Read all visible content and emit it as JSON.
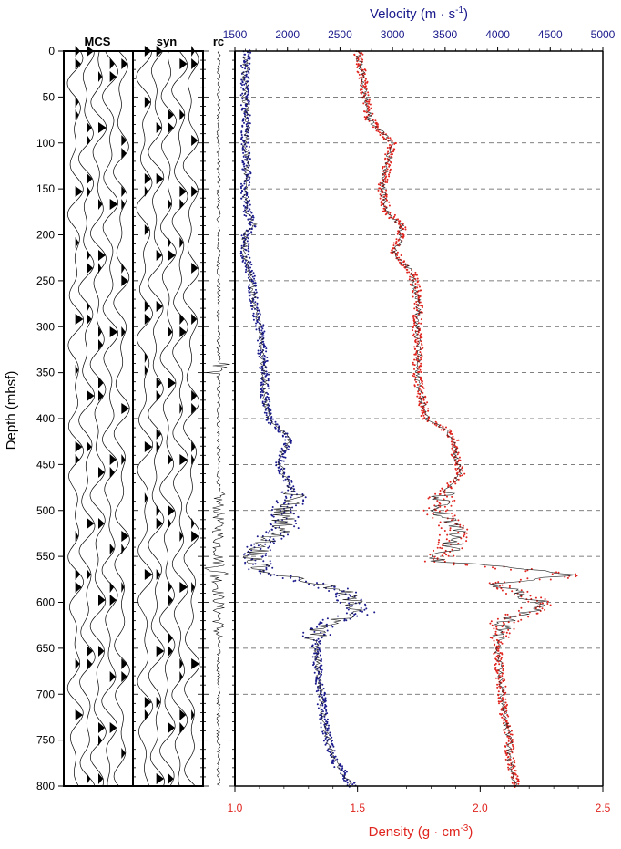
{
  "chart_data": {
    "type": "line",
    "panel_labels": [
      "MCS",
      "syn",
      "rc"
    ],
    "ylabel": "Depth (mbsf)",
    "ylim": [
      0,
      800
    ],
    "yticks": [
      0,
      50,
      100,
      150,
      200,
      250,
      300,
      350,
      400,
      450,
      500,
      550,
      600,
      650,
      700,
      750,
      800
    ],
    "top_axis": {
      "label": "Velocity (m · s",
      "label_sup": "-1",
      "label_end": ")",
      "range": [
        1500,
        5000
      ],
      "ticks": [
        1500,
        2000,
        2500,
        3000,
        3500,
        4000,
        4500,
        5000
      ],
      "color": "#1a1a8c"
    },
    "bottom_axis": {
      "label": "Density (g · cm",
      "label_sup": "-3",
      "label_end": ")",
      "range": [
        1.0,
        2.5
      ],
      "ticks": [
        "1.0",
        "1.5",
        "2.0",
        "2.5"
      ],
      "color": "#e0241e"
    },
    "grid": "dashed horizontal",
    "series": [
      {
        "color": "#1a1a8c",
        "points": [
          [
            0,
            1.05
          ],
          [
            25,
            1.04
          ],
          [
            50,
            1.04
          ],
          [
            75,
            1.05
          ],
          [
            100,
            1.04
          ],
          [
            125,
            1.05
          ],
          [
            150,
            1.04
          ],
          [
            175,
            1.05
          ],
          [
            190,
            1.08
          ],
          [
            200,
            1.04
          ],
          [
            220,
            1.04
          ],
          [
            250,
            1.07
          ],
          [
            280,
            1.08
          ],
          [
            300,
            1.1
          ],
          [
            325,
            1.11
          ],
          [
            350,
            1.12
          ],
          [
            375,
            1.12
          ],
          [
            400,
            1.14
          ],
          [
            410,
            1.17
          ],
          [
            420,
            1.22
          ],
          [
            435,
            1.2
          ],
          [
            450,
            1.18
          ],
          [
            470,
            1.22
          ],
          [
            485,
            1.24
          ],
          [
            500,
            1.2
          ],
          [
            520,
            1.2
          ],
          [
            535,
            1.12
          ],
          [
            550,
            1.08
          ],
          [
            565,
            1.1
          ],
          [
            580,
            1.35
          ],
          [
            590,
            1.45
          ],
          [
            600,
            1.48
          ],
          [
            610,
            1.52
          ],
          [
            620,
            1.4
          ],
          [
            630,
            1.33
          ],
          [
            650,
            1.33
          ],
          [
            675,
            1.34
          ],
          [
            700,
            1.35
          ],
          [
            725,
            1.36
          ],
          [
            750,
            1.38
          ],
          [
            770,
            1.4
          ],
          [
            790,
            1.45
          ],
          [
            800,
            1.48
          ]
        ]
      },
      {
        "color": "#e0241e",
        "points": [
          [
            0,
            1.5
          ],
          [
            25,
            1.52
          ],
          [
            50,
            1.53
          ],
          [
            75,
            1.55
          ],
          [
            100,
            1.64
          ],
          [
            125,
            1.62
          ],
          [
            150,
            1.6
          ],
          [
            175,
            1.62
          ],
          [
            190,
            1.68
          ],
          [
            200,
            1.68
          ],
          [
            220,
            1.65
          ],
          [
            240,
            1.72
          ],
          [
            260,
            1.74
          ],
          [
            280,
            1.75
          ],
          [
            300,
            1.74
          ],
          [
            325,
            1.75
          ],
          [
            350,
            1.74
          ],
          [
            375,
            1.76
          ],
          [
            400,
            1.78
          ],
          [
            410,
            1.85
          ],
          [
            425,
            1.9
          ],
          [
            440,
            1.9
          ],
          [
            460,
            1.92
          ],
          [
            480,
            1.85
          ],
          [
            500,
            1.82
          ],
          [
            520,
            1.9
          ],
          [
            540,
            1.88
          ],
          [
            555,
            1.82
          ],
          [
            570,
            2.4
          ],
          [
            580,
            2.05
          ],
          [
            590,
            2.15
          ],
          [
            600,
            2.25
          ],
          [
            610,
            2.2
          ],
          [
            620,
            2.1
          ],
          [
            630,
            2.08
          ],
          [
            650,
            2.07
          ],
          [
            675,
            2.08
          ],
          [
            700,
            2.09
          ],
          [
            725,
            2.1
          ],
          [
            750,
            2.12
          ],
          [
            770,
            2.12
          ],
          [
            790,
            2.14
          ],
          [
            800,
            2.14
          ]
        ]
      }
    ]
  }
}
